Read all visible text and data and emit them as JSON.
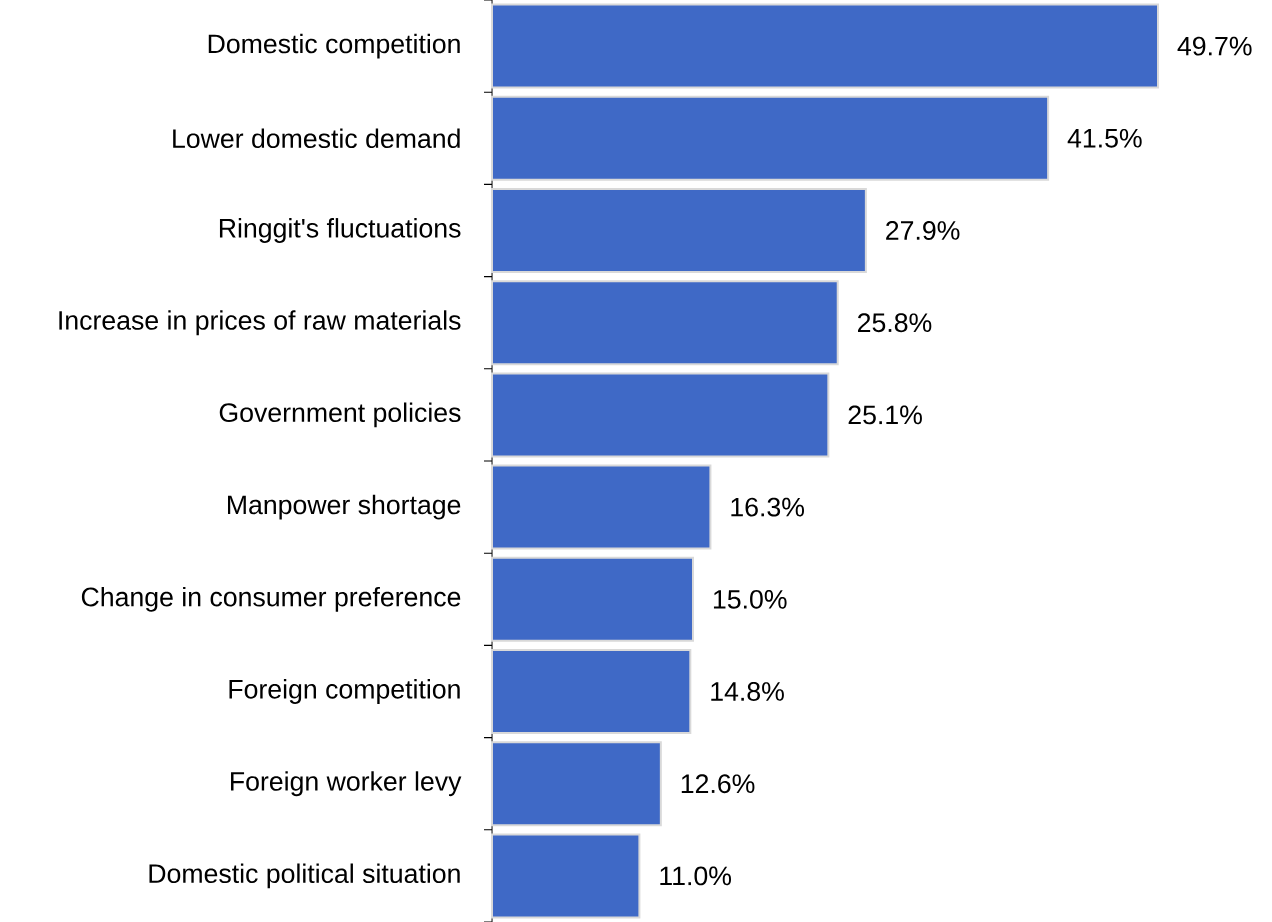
{
  "chart_data": {
    "type": "bar",
    "orientation": "horizontal",
    "categories": [
      "Domestic competition",
      "Lower domestic demand",
      "Ringgit's fluctuations",
      "Increase in prices of raw materials",
      "Government policies",
      "Manpower shortage",
      "Change in consumer preference",
      "Foreign competition",
      "Foreign worker levy",
      "Domestic political situation"
    ],
    "values": [
      49.7,
      41.5,
      27.9,
      25.8,
      25.1,
      16.3,
      15.0,
      14.8,
      12.6,
      11.0
    ],
    "value_labels": [
      "49.7%",
      "41.5%",
      "27.9%",
      "25.8%",
      "25.1%",
      "16.3%",
      "15.0%",
      "14.8%",
      "12.6%",
      "11.0%"
    ],
    "color": "#3f69c6"
  }
}
